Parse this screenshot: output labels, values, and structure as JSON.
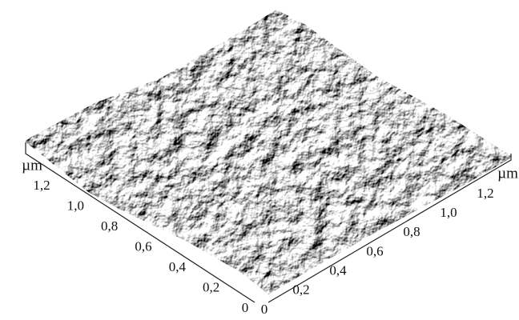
{
  "axes": {
    "left": {
      "unit": "µm",
      "ticks": [
        "1,2",
        "1,0",
        "0,8",
        "0,6",
        "0,4",
        "0,2",
        "0"
      ]
    },
    "right": {
      "unit": "µm",
      "ticks": [
        "0",
        "0,2",
        "0,4",
        "0,6",
        "0,8",
        "1,0",
        "1,2"
      ]
    }
  }
}
